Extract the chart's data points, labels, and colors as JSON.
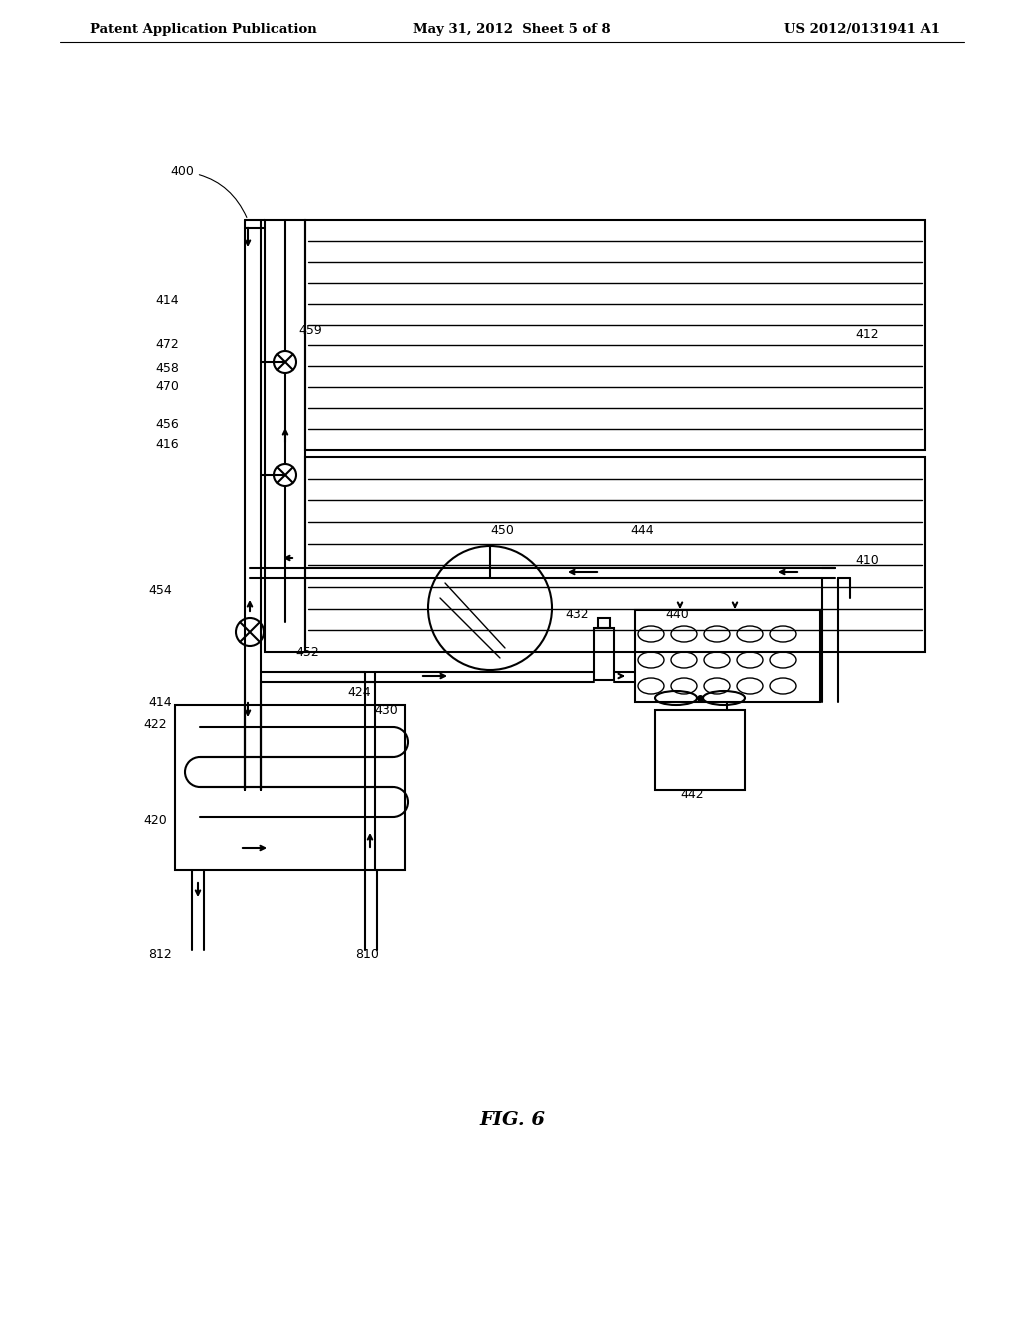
{
  "header_left": "Patent Application Publication",
  "header_middle": "May 31, 2012  Sheet 5 of 8",
  "header_right": "US 2012/0131941 A1",
  "figure_label": "FIG. 6",
  "background_color": "#ffffff",
  "line_color": "#000000"
}
